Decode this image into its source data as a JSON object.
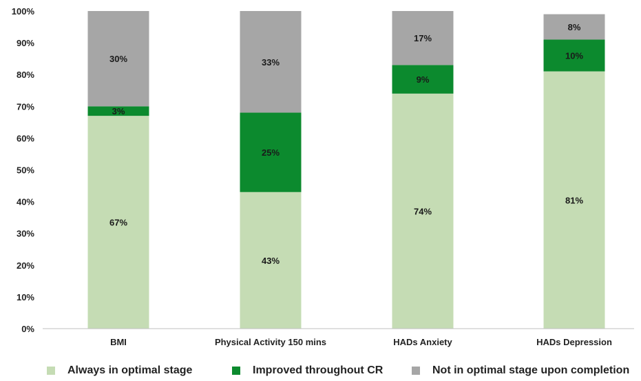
{
  "chart_data": {
    "type": "bar",
    "stacked": true,
    "categories": [
      "BMI",
      "Physical Activity 150 mins",
      "HADs Anxiety",
      "HADs Depression"
    ],
    "series": [
      {
        "name": "Always in optimal stage",
        "values": [
          67,
          43,
          74,
          81
        ],
        "labels": [
          "67%",
          "43%",
          "74%",
          "81%"
        ],
        "color": "#c5dcb4"
      },
      {
        "name": "Improved throughout CR",
        "values": [
          3,
          25,
          9,
          10
        ],
        "labels": [
          "3%",
          "25%",
          "9%",
          "10%"
        ],
        "color": "#0c8a2e"
      },
      {
        "name": "Not in optimal stage upon completion",
        "values": [
          30,
          33,
          17,
          8
        ],
        "labels": [
          "30%",
          "33%",
          "17%",
          "8%"
        ],
        "color": "#a6a6a6"
      }
    ],
    "ylim": [
      0,
      100
    ],
    "yticks": [
      "0%",
      "10%",
      "20%",
      "30%",
      "40%",
      "50%",
      "60%",
      "70%",
      "80%",
      "90%",
      "100%"
    ],
    "grid": false,
    "legend_position": "bottom"
  }
}
